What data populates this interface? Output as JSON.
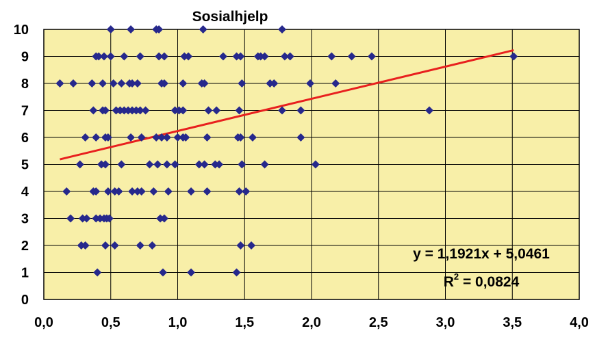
{
  "chart_data": {
    "type": "scatter",
    "title": "Sosialhjelp",
    "xlabel": "",
    "ylabel": "",
    "xlim": [
      0,
      4
    ],
    "ylim": [
      0,
      10
    ],
    "x_ticks": [
      "0,0",
      "0,5",
      "1,0",
      "1,5",
      "2,0",
      "2,5",
      "3,0",
      "3,5",
      "4,0"
    ],
    "y_ticks": [
      "0",
      "1",
      "2",
      "3",
      "4",
      "5",
      "6",
      "7",
      "8",
      "9",
      "10"
    ],
    "grid": true,
    "plot_background": "#F8EFA8",
    "marker_color": "#26288C",
    "trendline_color": "#E8201E",
    "trendline": {
      "slope": 1.1921,
      "intercept": 5.0461,
      "x_range": [
        0.12,
        3.51
      ]
    },
    "equation_text": "y = 1,1921x + 5,0461",
    "r2_prefix": "R",
    "r2_sup": "2",
    "r2_suffix": " = 0,0824",
    "points": [
      [
        0.5,
        10
      ],
      [
        0.65,
        10
      ],
      [
        0.84,
        10
      ],
      [
        0.86,
        10
      ],
      [
        1.19,
        10
      ],
      [
        1.78,
        10
      ],
      [
        0.39,
        9
      ],
      [
        0.41,
        9
      ],
      [
        0.45,
        9
      ],
      [
        0.5,
        9
      ],
      [
        0.6,
        9
      ],
      [
        0.72,
        9
      ],
      [
        0.86,
        9
      ],
      [
        0.9,
        9
      ],
      [
        1.05,
        9
      ],
      [
        1.08,
        9
      ],
      [
        1.34,
        9
      ],
      [
        1.44,
        9
      ],
      [
        1.47,
        9
      ],
      [
        1.6,
        9
      ],
      [
        1.62,
        9
      ],
      [
        1.65,
        9
      ],
      [
        1.8,
        9
      ],
      [
        1.84,
        9
      ],
      [
        2.15,
        9
      ],
      [
        2.3,
        9
      ],
      [
        2.45,
        9
      ],
      [
        3.51,
        9
      ],
      [
        0.12,
        8
      ],
      [
        0.22,
        8
      ],
      [
        0.36,
        8
      ],
      [
        0.44,
        8
      ],
      [
        0.52,
        8
      ],
      [
        0.58,
        8
      ],
      [
        0.64,
        8
      ],
      [
        0.66,
        8
      ],
      [
        0.7,
        8
      ],
      [
        0.88,
        8
      ],
      [
        0.9,
        8
      ],
      [
        1.04,
        8
      ],
      [
        1.18,
        8
      ],
      [
        1.2,
        8
      ],
      [
        1.48,
        8
      ],
      [
        1.69,
        8
      ],
      [
        1.72,
        8
      ],
      [
        1.99,
        8
      ],
      [
        2.18,
        8
      ],
      [
        0.37,
        7
      ],
      [
        0.44,
        7
      ],
      [
        0.46,
        7
      ],
      [
        0.54,
        7
      ],
      [
        0.57,
        7
      ],
      [
        0.6,
        7
      ],
      [
        0.63,
        7
      ],
      [
        0.66,
        7
      ],
      [
        0.69,
        7
      ],
      [
        0.72,
        7
      ],
      [
        0.76,
        7
      ],
      [
        0.98,
        7
      ],
      [
        1.01,
        7
      ],
      [
        1.04,
        7
      ],
      [
        1.23,
        7
      ],
      [
        1.29,
        7
      ],
      [
        1.46,
        7
      ],
      [
        1.78,
        7
      ],
      [
        1.92,
        7
      ],
      [
        2.88,
        7
      ],
      [
        0.31,
        6
      ],
      [
        0.39,
        6
      ],
      [
        0.46,
        6
      ],
      [
        0.48,
        6
      ],
      [
        0.65,
        6
      ],
      [
        0.73,
        6
      ],
      [
        0.84,
        6
      ],
      [
        0.88,
        6
      ],
      [
        0.92,
        6
      ],
      [
        1.0,
        6
      ],
      [
        1.04,
        6
      ],
      [
        1.06,
        6
      ],
      [
        1.22,
        6
      ],
      [
        1.45,
        6
      ],
      [
        1.47,
        6
      ],
      [
        1.56,
        6
      ],
      [
        1.92,
        6
      ],
      [
        0.27,
        5
      ],
      [
        0.43,
        5
      ],
      [
        0.46,
        5
      ],
      [
        0.58,
        5
      ],
      [
        0.79,
        5
      ],
      [
        0.85,
        5
      ],
      [
        0.92,
        5
      ],
      [
        0.98,
        5
      ],
      [
        1.16,
        5
      ],
      [
        1.2,
        5
      ],
      [
        1.28,
        5
      ],
      [
        1.31,
        5
      ],
      [
        1.48,
        5
      ],
      [
        1.65,
        5
      ],
      [
        2.03,
        5
      ],
      [
        0.17,
        4
      ],
      [
        0.37,
        4
      ],
      [
        0.39,
        4
      ],
      [
        0.48,
        4
      ],
      [
        0.53,
        4
      ],
      [
        0.56,
        4
      ],
      [
        0.66,
        4
      ],
      [
        0.7,
        4
      ],
      [
        0.73,
        4
      ],
      [
        0.82,
        4
      ],
      [
        0.93,
        4
      ],
      [
        1.1,
        4
      ],
      [
        1.22,
        4
      ],
      [
        1.46,
        4
      ],
      [
        1.51,
        4
      ],
      [
        0.2,
        3
      ],
      [
        0.29,
        3
      ],
      [
        0.32,
        3
      ],
      [
        0.39,
        3
      ],
      [
        0.42,
        3
      ],
      [
        0.45,
        3
      ],
      [
        0.47,
        3
      ],
      [
        0.49,
        3
      ],
      [
        0.87,
        3
      ],
      [
        0.9,
        3
      ],
      [
        0.28,
        2
      ],
      [
        0.31,
        2
      ],
      [
        0.46,
        2
      ],
      [
        0.53,
        2
      ],
      [
        0.72,
        2
      ],
      [
        0.81,
        2
      ],
      [
        1.47,
        2
      ],
      [
        1.55,
        2
      ],
      [
        0.4,
        1
      ],
      [
        0.89,
        1
      ],
      [
        1.1,
        1
      ],
      [
        1.44,
        1
      ]
    ]
  }
}
